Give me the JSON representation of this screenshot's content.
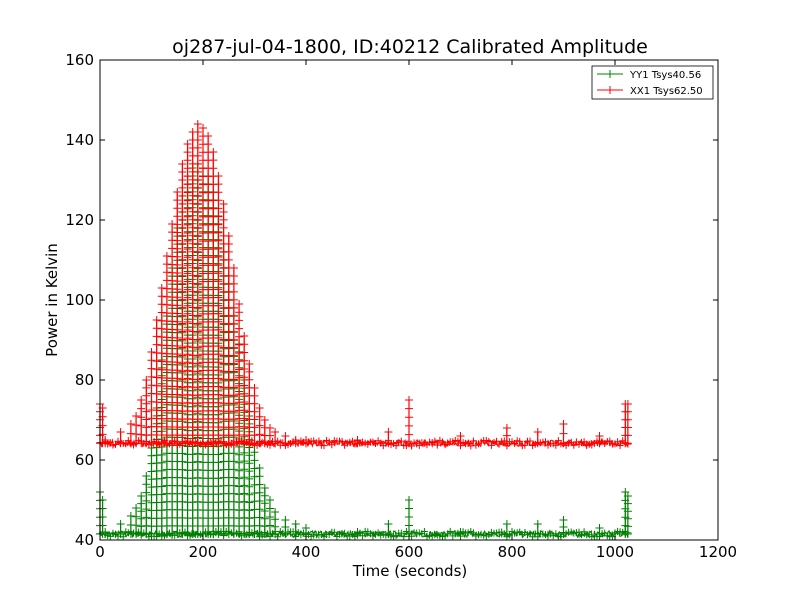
{
  "chart_data": {
    "type": "line",
    "title": "oj287-jul-04-1800, ID:40212 Calibrated Amplitude",
    "xlabel": "Time (seconds)",
    "ylabel": "Power in Kelvin",
    "xlim": [
      0,
      1200
    ],
    "ylim": [
      40,
      160
    ],
    "xticks": [
      "0",
      "200",
      "400",
      "600",
      "800",
      "1000",
      "1200"
    ],
    "yticks": [
      "40",
      "60",
      "80",
      "100",
      "120",
      "140",
      "160"
    ],
    "grid": false,
    "legend_position": "top-right",
    "marker": "+",
    "series": [
      {
        "name": "YY1 Tsys40.56",
        "color": "#008000",
        "baseline": 41.5,
        "x": [
          0,
          5,
          10,
          40,
          60,
          70,
          80,
          90,
          100,
          110,
          120,
          130,
          140,
          150,
          160,
          170,
          180,
          190,
          200,
          210,
          220,
          230,
          240,
          250,
          260,
          270,
          280,
          290,
          300,
          310,
          320,
          330,
          340,
          360,
          380,
          400,
          500,
          560,
          600,
          700,
          790,
          850,
          900,
          970,
          1020,
          1025
        ],
        "peak": [
          52,
          50,
          42,
          44,
          46,
          48,
          51,
          56,
          63,
          73,
          85,
          96,
          108,
          118,
          126,
          131,
          133,
          134,
          133,
          131,
          127,
          121,
          114,
          106,
          98,
          89,
          80,
          71,
          64,
          58,
          53,
          50,
          47,
          45,
          44,
          43,
          42,
          44,
          50,
          42,
          44,
          44,
          45,
          43,
          52,
          51
        ]
      },
      {
        "name": "XX1 Tsys62.50",
        "color": "#ff0000",
        "baseline": 64.2,
        "x": [
          0,
          5,
          10,
          40,
          60,
          70,
          80,
          90,
          100,
          110,
          120,
          130,
          140,
          150,
          160,
          170,
          180,
          190,
          200,
          210,
          220,
          230,
          240,
          250,
          260,
          270,
          280,
          290,
          300,
          310,
          320,
          330,
          340,
          360,
          380,
          400,
          500,
          560,
          600,
          700,
          790,
          850,
          900,
          970,
          1020,
          1025
        ],
        "peak": [
          74,
          73,
          65,
          67,
          69,
          71,
          75,
          80,
          87,
          95,
          103,
          111,
          119,
          127,
          134,
          139,
          142,
          144,
          143,
          141,
          137,
          131,
          124,
          116,
          108,
          99,
          91,
          84,
          78,
          73,
          70,
          68,
          67,
          66,
          65,
          65,
          65,
          67,
          75,
          66,
          68,
          67,
          69,
          66,
          74,
          74
        ]
      }
    ]
  }
}
